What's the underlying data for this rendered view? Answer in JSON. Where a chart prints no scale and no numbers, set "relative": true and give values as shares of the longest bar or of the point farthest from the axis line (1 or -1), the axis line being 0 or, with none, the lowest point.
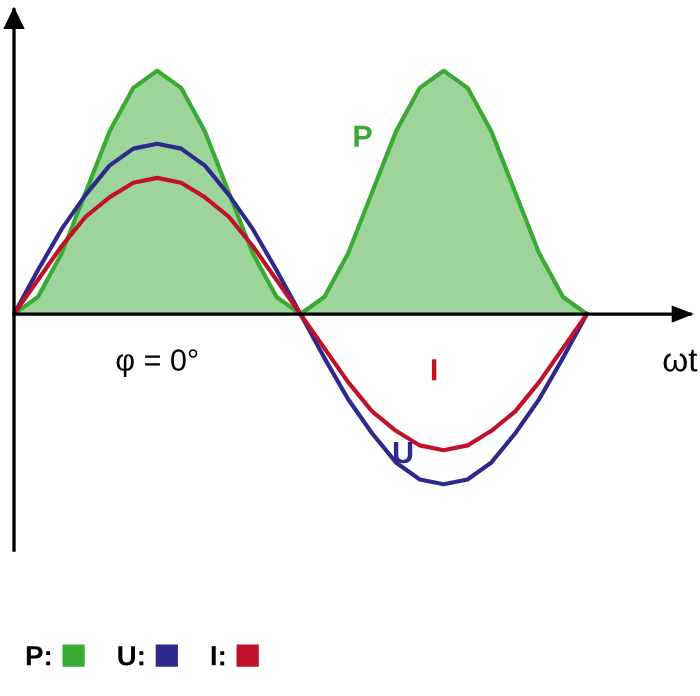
{
  "chart_data": {
    "type": "line",
    "relative": true,
    "xlabel": "ωt",
    "annotations": [
      "φ = 0°",
      "P",
      "U",
      "I"
    ],
    "legend": "bottom",
    "categories": [
      null,
      null,
      null,
      null,
      null,
      null,
      null,
      null,
      null,
      null,
      null,
      null,
      null,
      null,
      null,
      null,
      null,
      null,
      null,
      null,
      null,
      null,
      null,
      null,
      null
    ],
    "series": [
      {
        "name": "P:",
        "type": "area",
        "color": "#3aaa35",
        "values": [
          0,
          0.07,
          0.25,
          0.5,
          0.75,
          0.93,
          1,
          0.93,
          0.75,
          0.5,
          0.25,
          0.07,
          0,
          0.07,
          0.25,
          0.5,
          0.75,
          0.93,
          1,
          0.93,
          0.75,
          0.5,
          0.25,
          0.07,
          0
        ]
      },
      {
        "name": "U:",
        "color": "#2e2a8c",
        "values": [
          0,
          0.18,
          0.35,
          0.49,
          0.61,
          0.68,
          0.7,
          0.68,
          0.61,
          0.49,
          0.35,
          0.18,
          0,
          -0.18,
          -0.35,
          -0.49,
          -0.61,
          -0.68,
          -0.7,
          -0.68,
          -0.61,
          -0.49,
          -0.35,
          -0.18,
          0
        ]
      },
      {
        "name": "I:",
        "color": "#c0102a",
        "values": [
          0,
          0.14,
          0.28,
          0.4,
          0.48,
          0.54,
          0.56,
          0.54,
          0.48,
          0.4,
          0.28,
          0.14,
          0,
          -0.14,
          -0.28,
          -0.4,
          -0.48,
          -0.54,
          -0.56,
          -0.54,
          -0.48,
          -0.4,
          -0.28,
          -0.14,
          0
        ]
      }
    ]
  }
}
